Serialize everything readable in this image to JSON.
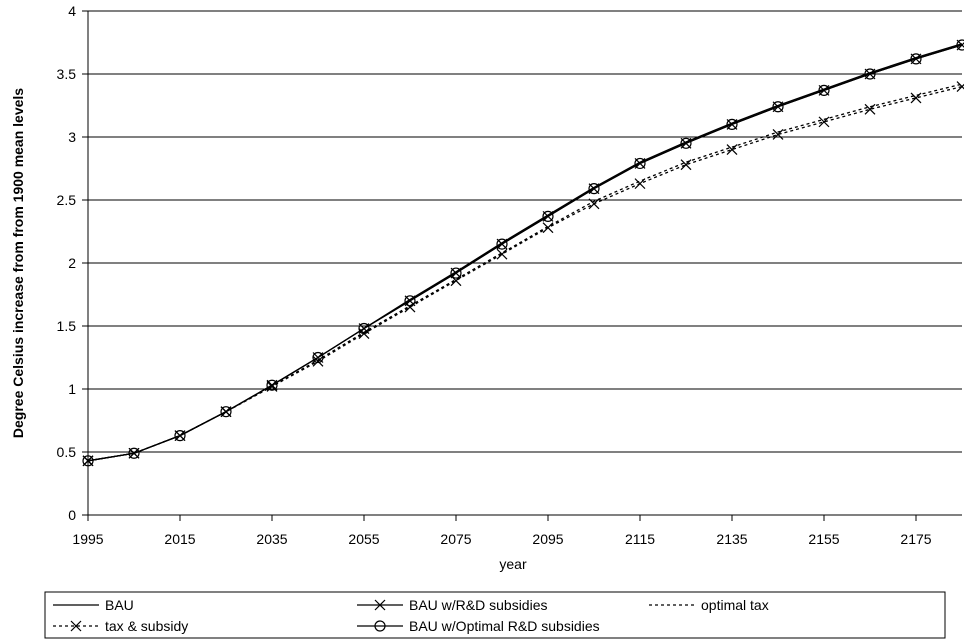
{
  "chart_data": {
    "type": "line",
    "xlabel": "year",
    "ylabel": "Degree Celsius increase from from 1900 mean levels",
    "xlim": [
      1995,
      2185
    ],
    "ylim": [
      0,
      4
    ],
    "x_ticks": [
      "1995",
      "2015",
      "2035",
      "2055",
      "2075",
      "2095",
      "2115",
      "2135",
      "2155",
      "2175"
    ],
    "y_ticks": [
      "0",
      "0.5",
      "1",
      "1.5",
      "2",
      "2.5",
      "3",
      "3.5",
      "4"
    ],
    "grid": "horizontal",
    "legend_position": "bottom",
    "x": [
      1995,
      2005,
      2015,
      2025,
      2035,
      2045,
      2055,
      2065,
      2075,
      2085,
      2095,
      2105,
      2115,
      2125,
      2135,
      2145,
      2155,
      2165,
      2175,
      2185
    ],
    "series": [
      {
        "name": "BAU",
        "style": "solid",
        "marker": "none",
        "values": [
          0.43,
          0.49,
          0.63,
          0.82,
          1.03,
          1.25,
          1.48,
          1.71,
          1.93,
          2.16,
          2.38,
          2.6,
          2.8,
          2.96,
          3.11,
          3.25,
          3.38,
          3.51,
          3.63,
          3.74
        ]
      },
      {
        "name": "BAU w/R&D subsidies",
        "style": "solid",
        "marker": "x",
        "values": [
          0.43,
          0.49,
          0.63,
          0.82,
          1.03,
          1.25,
          1.48,
          1.7,
          1.92,
          2.15,
          2.37,
          2.59,
          2.79,
          2.95,
          3.1,
          3.24,
          3.37,
          3.5,
          3.62,
          3.73
        ]
      },
      {
        "name": "optimal tax",
        "style": "dotted",
        "marker": "none",
        "values": [
          0.43,
          0.49,
          0.63,
          0.82,
          1.02,
          1.23,
          1.45,
          1.66,
          1.87,
          2.08,
          2.29,
          2.49,
          2.65,
          2.8,
          2.92,
          3.04,
          3.14,
          3.24,
          3.33,
          3.42
        ]
      },
      {
        "name": "tax & subsidy",
        "style": "dotted",
        "marker": "x",
        "values": [
          0.43,
          0.49,
          0.63,
          0.82,
          1.02,
          1.22,
          1.44,
          1.65,
          1.86,
          2.07,
          2.28,
          2.47,
          2.63,
          2.78,
          2.9,
          3.02,
          3.12,
          3.22,
          3.31,
          3.4
        ]
      },
      {
        "name": "BAU w/Optimal R&D subsidies",
        "style": "solid",
        "marker": "circle",
        "values": [
          0.43,
          0.49,
          0.63,
          0.82,
          1.03,
          1.25,
          1.48,
          1.7,
          1.92,
          2.15,
          2.37,
          2.59,
          2.79,
          2.95,
          3.1,
          3.24,
          3.37,
          3.5,
          3.62,
          3.73
        ]
      }
    ]
  }
}
